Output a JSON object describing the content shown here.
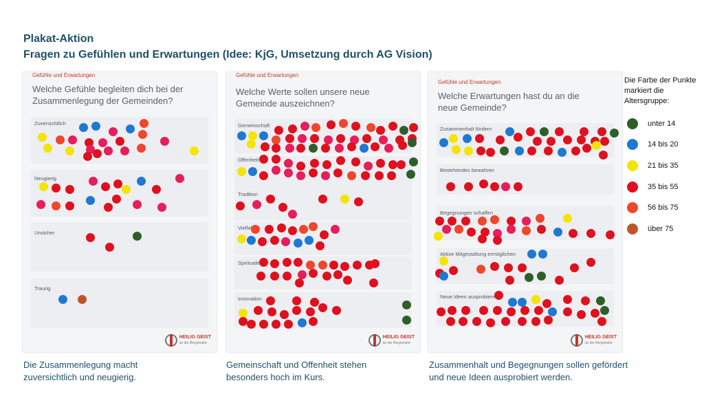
{
  "header": {
    "line1": "Plakat-Aktion",
    "line2": "Fragen zu Gefühlen und Erwartungen (Idee: KjG, Umsetzung durch AG Vision)"
  },
  "colors": {
    "unter14": "#2e5e2a",
    "14bis20": "#1f78d1",
    "21bis35": "#f5e400",
    "35bis55": "#e0101e",
    "56bis75": "#f0462c",
    "ueber75": "#c0552a",
    "pink": "#e61e5a"
  },
  "posters": [
    {
      "header": "Gefühle und Erwartungen",
      "question": "Welche Gefühle begleiten dich bei der Zusammenlegung der Gemeinden?",
      "categories": [
        "Zuversichtlich",
        "Neugierig",
        "Unsicher",
        "Traurig"
      ],
      "logo_name": "HEILIG GEIST",
      "logo_sub": "an der Bergstraße"
    },
    {
      "header": "Gefühle und Erwartungen",
      "question": "Welche Werte sollen unsere neue Gemeinde auszeichnen?",
      "categories": [
        "Gemeinschaft",
        "Offenheit",
        "Tradition",
        "Vielfalt",
        "Spiritualität",
        "Innovation"
      ],
      "logo_name": "HEILIG GEIST",
      "logo_sub": "an der Bergstraße"
    },
    {
      "header": "Gefühle und Erwartungen",
      "question": "Welche Erwartungen hast du an die neue Gemeinde?",
      "categories": [
        "Zusammenhalt fördern",
        "Bestehendes bewahren",
        "Begegnungen schaffen",
        "Aktive Mitgestaltung ermöglichen",
        "Neue Ideen ausprobieren"
      ],
      "logo_name": "HEILIG GEIST",
      "logo_sub": "an der Bergstraße"
    }
  ],
  "captions": [
    "Die Zusammenlegung macht zuversichtlich und neugierig.",
    "Gemeinschaft und Offenheit stehen besonders hoch im Kurs.",
    "Zusammenhalt und Begegnungen sollen gefördert und neue Ideen ausprobiert werden."
  ],
  "legend": {
    "title": "Die Farbe der Punkte markiert die Altersgruppe:",
    "items": [
      {
        "label": "unter 14",
        "color": "#2e5e2a"
      },
      {
        "label": "14 bis 20",
        "color": "#1f78d1"
      },
      {
        "label": "21 bis 35",
        "color": "#f5e400"
      },
      {
        "label": "35 bis 55",
        "color": "#e0101e"
      },
      {
        "label": "56 bis 75",
        "color": "#f0462c"
      },
      {
        "label": "über 75",
        "color": "#c0552a"
      }
    ]
  }
}
